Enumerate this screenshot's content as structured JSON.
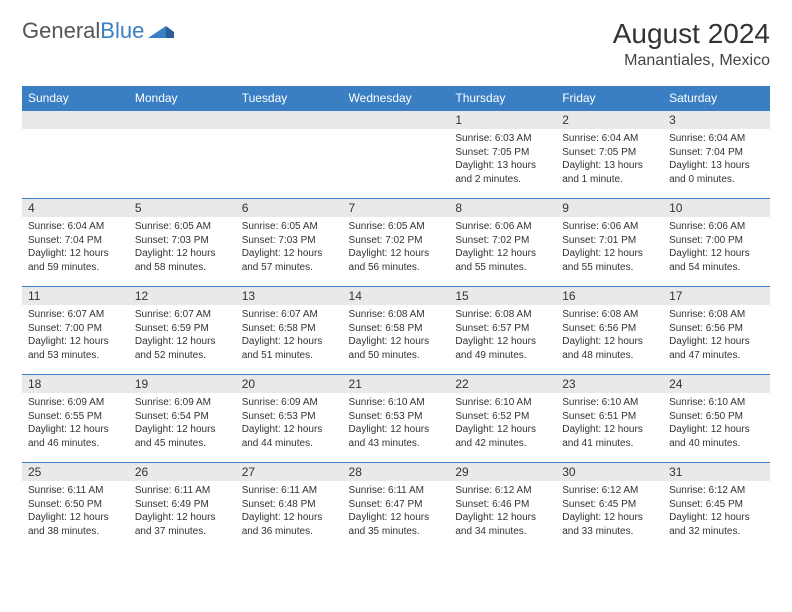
{
  "brand": {
    "part1": "General",
    "part2": "Blue"
  },
  "title": {
    "month": "August 2024",
    "location": "Manantiales, Mexico"
  },
  "colors": {
    "header_bg": "#3a7fc4",
    "header_text": "#ffffff",
    "daynum_bg": "#e9e9e9",
    "body_bg": "#ffffff",
    "text": "#333333",
    "rule": "#3a7fc4"
  },
  "days": [
    "Sunday",
    "Monday",
    "Tuesday",
    "Wednesday",
    "Thursday",
    "Friday",
    "Saturday"
  ],
  "weeks": [
    [
      {
        "n": "",
        "sr": "",
        "ss": "",
        "dl": ""
      },
      {
        "n": "",
        "sr": "",
        "ss": "",
        "dl": ""
      },
      {
        "n": "",
        "sr": "",
        "ss": "",
        "dl": ""
      },
      {
        "n": "",
        "sr": "",
        "ss": "",
        "dl": ""
      },
      {
        "n": "1",
        "sr": "Sunrise: 6:03 AM",
        "ss": "Sunset: 7:05 PM",
        "dl": "Daylight: 13 hours and 2 minutes."
      },
      {
        "n": "2",
        "sr": "Sunrise: 6:04 AM",
        "ss": "Sunset: 7:05 PM",
        "dl": "Daylight: 13 hours and 1 minute."
      },
      {
        "n": "3",
        "sr": "Sunrise: 6:04 AM",
        "ss": "Sunset: 7:04 PM",
        "dl": "Daylight: 13 hours and 0 minutes."
      }
    ],
    [
      {
        "n": "4",
        "sr": "Sunrise: 6:04 AM",
        "ss": "Sunset: 7:04 PM",
        "dl": "Daylight: 12 hours and 59 minutes."
      },
      {
        "n": "5",
        "sr": "Sunrise: 6:05 AM",
        "ss": "Sunset: 7:03 PM",
        "dl": "Daylight: 12 hours and 58 minutes."
      },
      {
        "n": "6",
        "sr": "Sunrise: 6:05 AM",
        "ss": "Sunset: 7:03 PM",
        "dl": "Daylight: 12 hours and 57 minutes."
      },
      {
        "n": "7",
        "sr": "Sunrise: 6:05 AM",
        "ss": "Sunset: 7:02 PM",
        "dl": "Daylight: 12 hours and 56 minutes."
      },
      {
        "n": "8",
        "sr": "Sunrise: 6:06 AM",
        "ss": "Sunset: 7:02 PM",
        "dl": "Daylight: 12 hours and 55 minutes."
      },
      {
        "n": "9",
        "sr": "Sunrise: 6:06 AM",
        "ss": "Sunset: 7:01 PM",
        "dl": "Daylight: 12 hours and 55 minutes."
      },
      {
        "n": "10",
        "sr": "Sunrise: 6:06 AM",
        "ss": "Sunset: 7:00 PM",
        "dl": "Daylight: 12 hours and 54 minutes."
      }
    ],
    [
      {
        "n": "11",
        "sr": "Sunrise: 6:07 AM",
        "ss": "Sunset: 7:00 PM",
        "dl": "Daylight: 12 hours and 53 minutes."
      },
      {
        "n": "12",
        "sr": "Sunrise: 6:07 AM",
        "ss": "Sunset: 6:59 PM",
        "dl": "Daylight: 12 hours and 52 minutes."
      },
      {
        "n": "13",
        "sr": "Sunrise: 6:07 AM",
        "ss": "Sunset: 6:58 PM",
        "dl": "Daylight: 12 hours and 51 minutes."
      },
      {
        "n": "14",
        "sr": "Sunrise: 6:08 AM",
        "ss": "Sunset: 6:58 PM",
        "dl": "Daylight: 12 hours and 50 minutes."
      },
      {
        "n": "15",
        "sr": "Sunrise: 6:08 AM",
        "ss": "Sunset: 6:57 PM",
        "dl": "Daylight: 12 hours and 49 minutes."
      },
      {
        "n": "16",
        "sr": "Sunrise: 6:08 AM",
        "ss": "Sunset: 6:56 PM",
        "dl": "Daylight: 12 hours and 48 minutes."
      },
      {
        "n": "17",
        "sr": "Sunrise: 6:08 AM",
        "ss": "Sunset: 6:56 PM",
        "dl": "Daylight: 12 hours and 47 minutes."
      }
    ],
    [
      {
        "n": "18",
        "sr": "Sunrise: 6:09 AM",
        "ss": "Sunset: 6:55 PM",
        "dl": "Daylight: 12 hours and 46 minutes."
      },
      {
        "n": "19",
        "sr": "Sunrise: 6:09 AM",
        "ss": "Sunset: 6:54 PM",
        "dl": "Daylight: 12 hours and 45 minutes."
      },
      {
        "n": "20",
        "sr": "Sunrise: 6:09 AM",
        "ss": "Sunset: 6:53 PM",
        "dl": "Daylight: 12 hours and 44 minutes."
      },
      {
        "n": "21",
        "sr": "Sunrise: 6:10 AM",
        "ss": "Sunset: 6:53 PM",
        "dl": "Daylight: 12 hours and 43 minutes."
      },
      {
        "n": "22",
        "sr": "Sunrise: 6:10 AM",
        "ss": "Sunset: 6:52 PM",
        "dl": "Daylight: 12 hours and 42 minutes."
      },
      {
        "n": "23",
        "sr": "Sunrise: 6:10 AM",
        "ss": "Sunset: 6:51 PM",
        "dl": "Daylight: 12 hours and 41 minutes."
      },
      {
        "n": "24",
        "sr": "Sunrise: 6:10 AM",
        "ss": "Sunset: 6:50 PM",
        "dl": "Daylight: 12 hours and 40 minutes."
      }
    ],
    [
      {
        "n": "25",
        "sr": "Sunrise: 6:11 AM",
        "ss": "Sunset: 6:50 PM",
        "dl": "Daylight: 12 hours and 38 minutes."
      },
      {
        "n": "26",
        "sr": "Sunrise: 6:11 AM",
        "ss": "Sunset: 6:49 PM",
        "dl": "Daylight: 12 hours and 37 minutes."
      },
      {
        "n": "27",
        "sr": "Sunrise: 6:11 AM",
        "ss": "Sunset: 6:48 PM",
        "dl": "Daylight: 12 hours and 36 minutes."
      },
      {
        "n": "28",
        "sr": "Sunrise: 6:11 AM",
        "ss": "Sunset: 6:47 PM",
        "dl": "Daylight: 12 hours and 35 minutes."
      },
      {
        "n": "29",
        "sr": "Sunrise: 6:12 AM",
        "ss": "Sunset: 6:46 PM",
        "dl": "Daylight: 12 hours and 34 minutes."
      },
      {
        "n": "30",
        "sr": "Sunrise: 6:12 AM",
        "ss": "Sunset: 6:45 PM",
        "dl": "Daylight: 12 hours and 33 minutes."
      },
      {
        "n": "31",
        "sr": "Sunrise: 6:12 AM",
        "ss": "Sunset: 6:45 PM",
        "dl": "Daylight: 12 hours and 32 minutes."
      }
    ]
  ]
}
